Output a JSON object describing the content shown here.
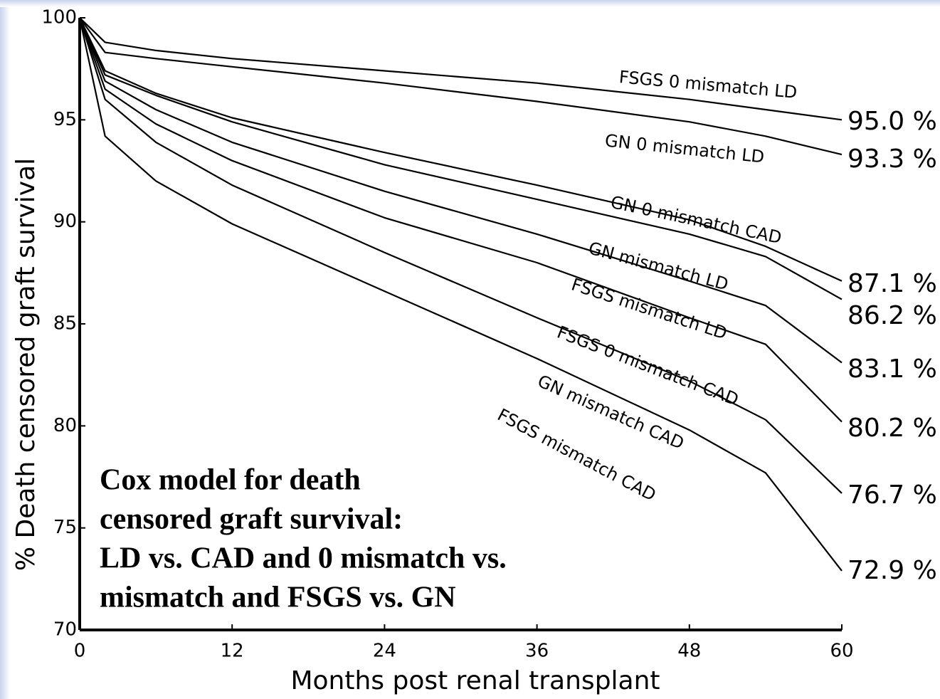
{
  "chart_data": {
    "type": "line",
    "x_label": "Months post renal transplant",
    "y_label": "% Death censored graft survival",
    "annotation": [
      "Cox model for death",
      "censored graft survival:",
      "LD vs. CAD and 0 mismatch vs.",
      "mismatch and FSGS vs. GN"
    ],
    "x": [
      0,
      2,
      6,
      12,
      24,
      36,
      48,
      54,
      60
    ],
    "xlim": [
      0,
      60
    ],
    "xticks": [
      0,
      12,
      24,
      36,
      48,
      60
    ],
    "ylim": [
      70,
      100
    ],
    "yticks": [
      70,
      75,
      80,
      85,
      90,
      95,
      100
    ],
    "series": [
      {
        "name": "FSGS 0 mismatch LD",
        "color": "#000000",
        "values": [
          100,
          98.8,
          98.4,
          98.0,
          97.4,
          96.8,
          96.0,
          95.5,
          95.0
        ],
        "value_labels": [
          null,
          null,
          null,
          null,
          null,
          null,
          null,
          null,
          "95.0 %"
        ]
      },
      {
        "name": "GN 0 mismatch LD",
        "color": "#000000",
        "values": [
          100,
          98.3,
          98.0,
          97.6,
          96.8,
          95.9,
          94.9,
          94.2,
          93.3
        ],
        "value_labels": [
          null,
          null,
          null,
          null,
          null,
          null,
          null,
          null,
          "93.3 %"
        ]
      },
      {
        "name": "GN 0 mismatch CAD",
        "color": "#000000",
        "values": [
          100,
          97.4,
          96.3,
          95.1,
          93.4,
          91.8,
          90.1,
          88.8,
          87.1
        ],
        "value_labels": [
          null,
          null,
          null,
          null,
          null,
          null,
          null,
          null,
          "87.1 %"
        ]
      },
      {
        "name": "GN mismatch LD",
        "color": "#000000",
        "values": [
          100,
          97.2,
          96.2,
          94.9,
          92.8,
          91.1,
          89.4,
          88.3,
          86.2
        ],
        "value_labels": [
          null,
          null,
          null,
          null,
          null,
          null,
          null,
          null,
          "86.2 %"
        ]
      },
      {
        "name": "FSGS mismatch LD",
        "color": "#000000",
        "values": [
          100,
          96.9,
          95.5,
          93.9,
          91.5,
          89.4,
          87.1,
          85.9,
          83.1
        ],
        "value_labels": [
          null,
          null,
          null,
          null,
          null,
          null,
          null,
          null,
          "83.1 %"
        ]
      },
      {
        "name": "FSGS 0 mismatch CAD",
        "color": "#000000",
        "values": [
          100,
          96.5,
          94.8,
          93.0,
          90.2,
          88.0,
          85.3,
          84.0,
          80.2
        ],
        "value_labels": [
          null,
          null,
          null,
          null,
          null,
          null,
          null,
          null,
          "80.2 %"
        ]
      },
      {
        "name": "GN mismatch CAD",
        "color": "#000000",
        "values": [
          100,
          96.0,
          93.9,
          91.8,
          88.5,
          85.3,
          82.2,
          80.3,
          76.7
        ],
        "value_labels": [
          null,
          null,
          null,
          null,
          null,
          null,
          null,
          null,
          "76.7 %"
        ]
      },
      {
        "name": "FSGS mismatch CAD",
        "color": "#000000",
        "values": [
          100,
          94.2,
          92.0,
          89.9,
          86.6,
          83.3,
          79.8,
          77.7,
          72.9
        ],
        "value_labels": [
          null,
          null,
          null,
          null,
          null,
          null,
          null,
          null,
          "72.9 %"
        ]
      }
    ]
  }
}
